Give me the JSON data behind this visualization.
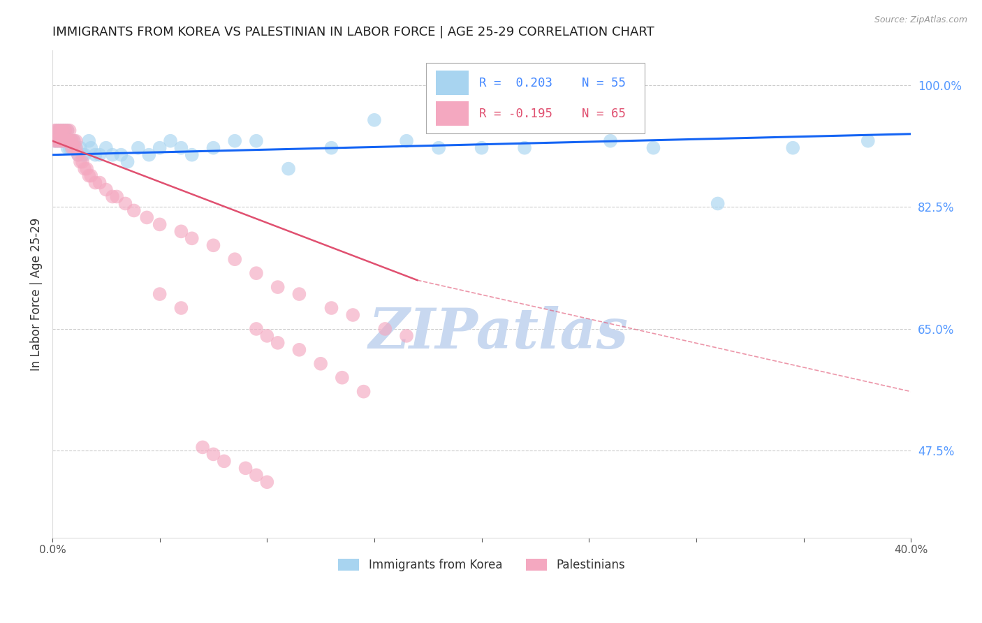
{
  "title": "IMMIGRANTS FROM KOREA VS PALESTINIAN IN LABOR FORCE | AGE 25-29 CORRELATION CHART",
  "source": "Source: ZipAtlas.com",
  "ylabel": "In Labor Force | Age 25-29",
  "xlim": [
    0.0,
    0.4
  ],
  "ylim": [
    0.35,
    1.05
  ],
  "xticks": [
    0.0,
    0.05,
    0.1,
    0.15,
    0.2,
    0.25,
    0.3,
    0.35,
    0.4
  ],
  "xtick_labels": [
    "0.0%",
    "",
    "",
    "",
    "",
    "",
    "",
    "",
    "40.0%"
  ],
  "yticks_right": [
    1.0,
    0.825,
    0.65,
    0.475
  ],
  "ytick_right_labels": [
    "100.0%",
    "82.5%",
    "65.0%",
    "47.5%"
  ],
  "grid_color": "#cccccc",
  "background_color": "#ffffff",
  "blue_scatter_color": "#a8d4f0",
  "pink_scatter_color": "#f4a8c0",
  "blue_line_color": "#1464F4",
  "pink_line_color": "#E05070",
  "watermark": "ZIPatlas",
  "watermark_color": "#c8d8f0",
  "legend_label_blue": "Immigrants from Korea",
  "legend_label_pink": "Palestinians",
  "blue_x": [
    0.001,
    0.002,
    0.002,
    0.003,
    0.003,
    0.004,
    0.004,
    0.005,
    0.005,
    0.005,
    0.006,
    0.006,
    0.007,
    0.007,
    0.008,
    0.008,
    0.009,
    0.009,
    0.01,
    0.01,
    0.011,
    0.012,
    0.013,
    0.014,
    0.015,
    0.017,
    0.018,
    0.02,
    0.022,
    0.025,
    0.028,
    0.032,
    0.035,
    0.04,
    0.045,
    0.05,
    0.055,
    0.06,
    0.065,
    0.075,
    0.085,
    0.095,
    0.11,
    0.13,
    0.15,
    0.165,
    0.18,
    0.2,
    0.22,
    0.24,
    0.26,
    0.28,
    0.31,
    0.345,
    0.38
  ],
  "blue_y": [
    0.92,
    0.92,
    0.935,
    0.935,
    0.92,
    0.92,
    0.935,
    0.92,
    0.92,
    0.935,
    0.935,
    0.92,
    0.91,
    0.935,
    0.92,
    0.91,
    0.92,
    0.91,
    0.92,
    0.91,
    0.91,
    0.9,
    0.91,
    0.9,
    0.9,
    0.92,
    0.91,
    0.9,
    0.9,
    0.91,
    0.9,
    0.9,
    0.89,
    0.91,
    0.9,
    0.91,
    0.92,
    0.91,
    0.9,
    0.91,
    0.92,
    0.92,
    0.88,
    0.91,
    0.95,
    0.92,
    0.91,
    0.91,
    0.91,
    0.97,
    0.92,
    0.91,
    0.83,
    0.91,
    0.92
  ],
  "pink_x": [
    0.001,
    0.001,
    0.002,
    0.002,
    0.003,
    0.003,
    0.004,
    0.004,
    0.005,
    0.005,
    0.006,
    0.006,
    0.007,
    0.007,
    0.007,
    0.008,
    0.008,
    0.009,
    0.009,
    0.01,
    0.01,
    0.011,
    0.011,
    0.012,
    0.013,
    0.014,
    0.015,
    0.016,
    0.017,
    0.018,
    0.02,
    0.022,
    0.025,
    0.028,
    0.03,
    0.034,
    0.038,
    0.044,
    0.05,
    0.06,
    0.065,
    0.075,
    0.085,
    0.095,
    0.105,
    0.115,
    0.13,
    0.14,
    0.155,
    0.165,
    0.05,
    0.06,
    0.095,
    0.1,
    0.105,
    0.115,
    0.125,
    0.135,
    0.145,
    0.07,
    0.075,
    0.08,
    0.09,
    0.095,
    0.1
  ],
  "pink_y": [
    0.92,
    0.935,
    0.92,
    0.935,
    0.935,
    0.92,
    0.935,
    0.92,
    0.92,
    0.935,
    0.935,
    0.92,
    0.92,
    0.935,
    0.92,
    0.935,
    0.92,
    0.92,
    0.91,
    0.92,
    0.91,
    0.91,
    0.92,
    0.9,
    0.89,
    0.89,
    0.88,
    0.88,
    0.87,
    0.87,
    0.86,
    0.86,
    0.85,
    0.84,
    0.84,
    0.83,
    0.82,
    0.81,
    0.8,
    0.79,
    0.78,
    0.77,
    0.75,
    0.73,
    0.71,
    0.7,
    0.68,
    0.67,
    0.65,
    0.64,
    0.7,
    0.68,
    0.65,
    0.64,
    0.63,
    0.62,
    0.6,
    0.58,
    0.56,
    0.48,
    0.47,
    0.46,
    0.45,
    0.44,
    0.43
  ],
  "blue_trend": [
    0.0,
    0.4,
    0.9,
    0.93
  ],
  "pink_trend_solid": [
    0.0,
    0.17,
    0.92,
    0.72
  ],
  "pink_trend_dashed": [
    0.17,
    0.4,
    0.72,
    0.56
  ]
}
